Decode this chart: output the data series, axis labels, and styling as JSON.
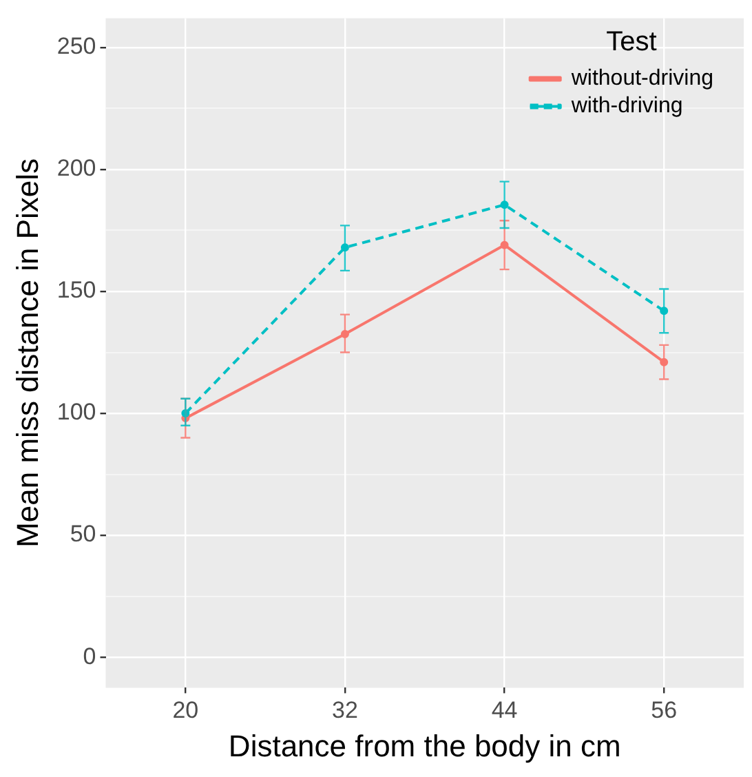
{
  "chart_data": {
    "type": "line",
    "xlabel": "Distance from the body in cm",
    "ylabel": "Mean miss distance in Pixels",
    "legend_title": "Test",
    "categories": [
      "20",
      "32",
      "44",
      "56"
    ],
    "series": [
      {
        "name": "without-driving",
        "color": "#f8766d",
        "line_style": "solid",
        "values": [
          98,
          132.5,
          169,
          121
        ],
        "errors": [
          [
            90,
            106
          ],
          [
            125,
            140.5
          ],
          [
            159,
            179
          ],
          [
            114,
            128
          ]
        ]
      },
      {
        "name": "with-driving",
        "color": "#00bfc4",
        "line_style": "dashed",
        "values": [
          100,
          168,
          185.5,
          142
        ],
        "errors": [
          [
            95,
            106
          ],
          [
            158.5,
            177
          ],
          [
            176,
            195
          ],
          [
            133,
            151
          ]
        ]
      }
    ],
    "ylim": [
      -12.5,
      262
    ],
    "yticks": [
      0,
      {
        "value": 25,
        "label": null
      },
      50,
      {
        "value": 75,
        "label": null
      },
      100,
      {
        "value": 125,
        "label": null
      },
      150,
      {
        "value": 175,
        "label": null
      },
      200,
      {
        "value": 225,
        "label": null
      },
      250
    ],
    "grid": true,
    "legend": "top right",
    "marker": "circle"
  }
}
